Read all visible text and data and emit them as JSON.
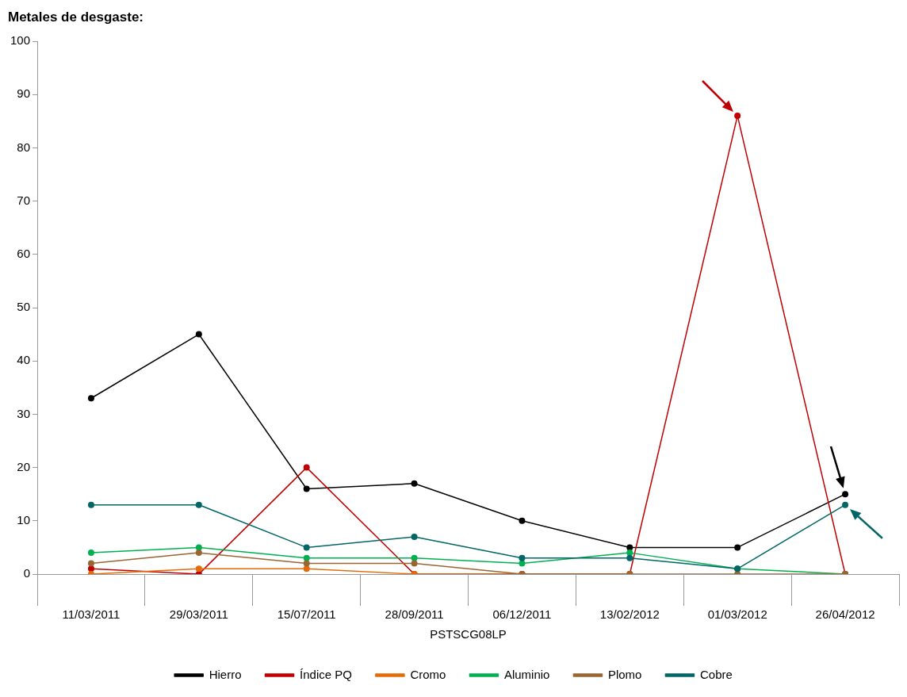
{
  "chart_data": {
    "type": "line",
    "title": "Metales de desgaste:",
    "xlabel": "PSTSCG08LP",
    "categories": [
      "11/03/2011",
      "29/03/2011",
      "15/07/2011",
      "28/09/2011",
      "06/12/2011",
      "13/02/2012",
      "01/03/2012",
      "26/04/2012"
    ],
    "series": [
      {
        "name": "Hierro",
        "color": "#000000",
        "values": [
          33,
          45,
          16,
          17,
          10,
          5,
          5,
          15
        ]
      },
      {
        "name": "Índice PQ",
        "color": "#c00000",
        "values": [
          1,
          0,
          20,
          0,
          0,
          0,
          86,
          0
        ]
      },
      {
        "name": "Cromo",
        "color": "#e36c09",
        "values": [
          0,
          1,
          1,
          0,
          0,
          0,
          null,
          null
        ]
      },
      {
        "name": "Aluminio",
        "color": "#00b050",
        "values": [
          4,
          5,
          3,
          3,
          2,
          4,
          1,
          0
        ]
      },
      {
        "name": "Plomo",
        "color": "#996633",
        "values": [
          2,
          4,
          2,
          2,
          0,
          0,
          0,
          0
        ]
      },
      {
        "name": "Cobre",
        "color": "#006666",
        "values": [
          13,
          13,
          5,
          7,
          3,
          3,
          1,
          13
        ]
      }
    ],
    "ylim": [
      0,
      100
    ],
    "yticks": [
      0,
      10,
      20,
      30,
      40,
      50,
      60,
      70,
      80,
      90,
      100
    ],
    "grid": false,
    "legend": "bottom",
    "marker": "circle",
    "line_style": "solid"
  }
}
